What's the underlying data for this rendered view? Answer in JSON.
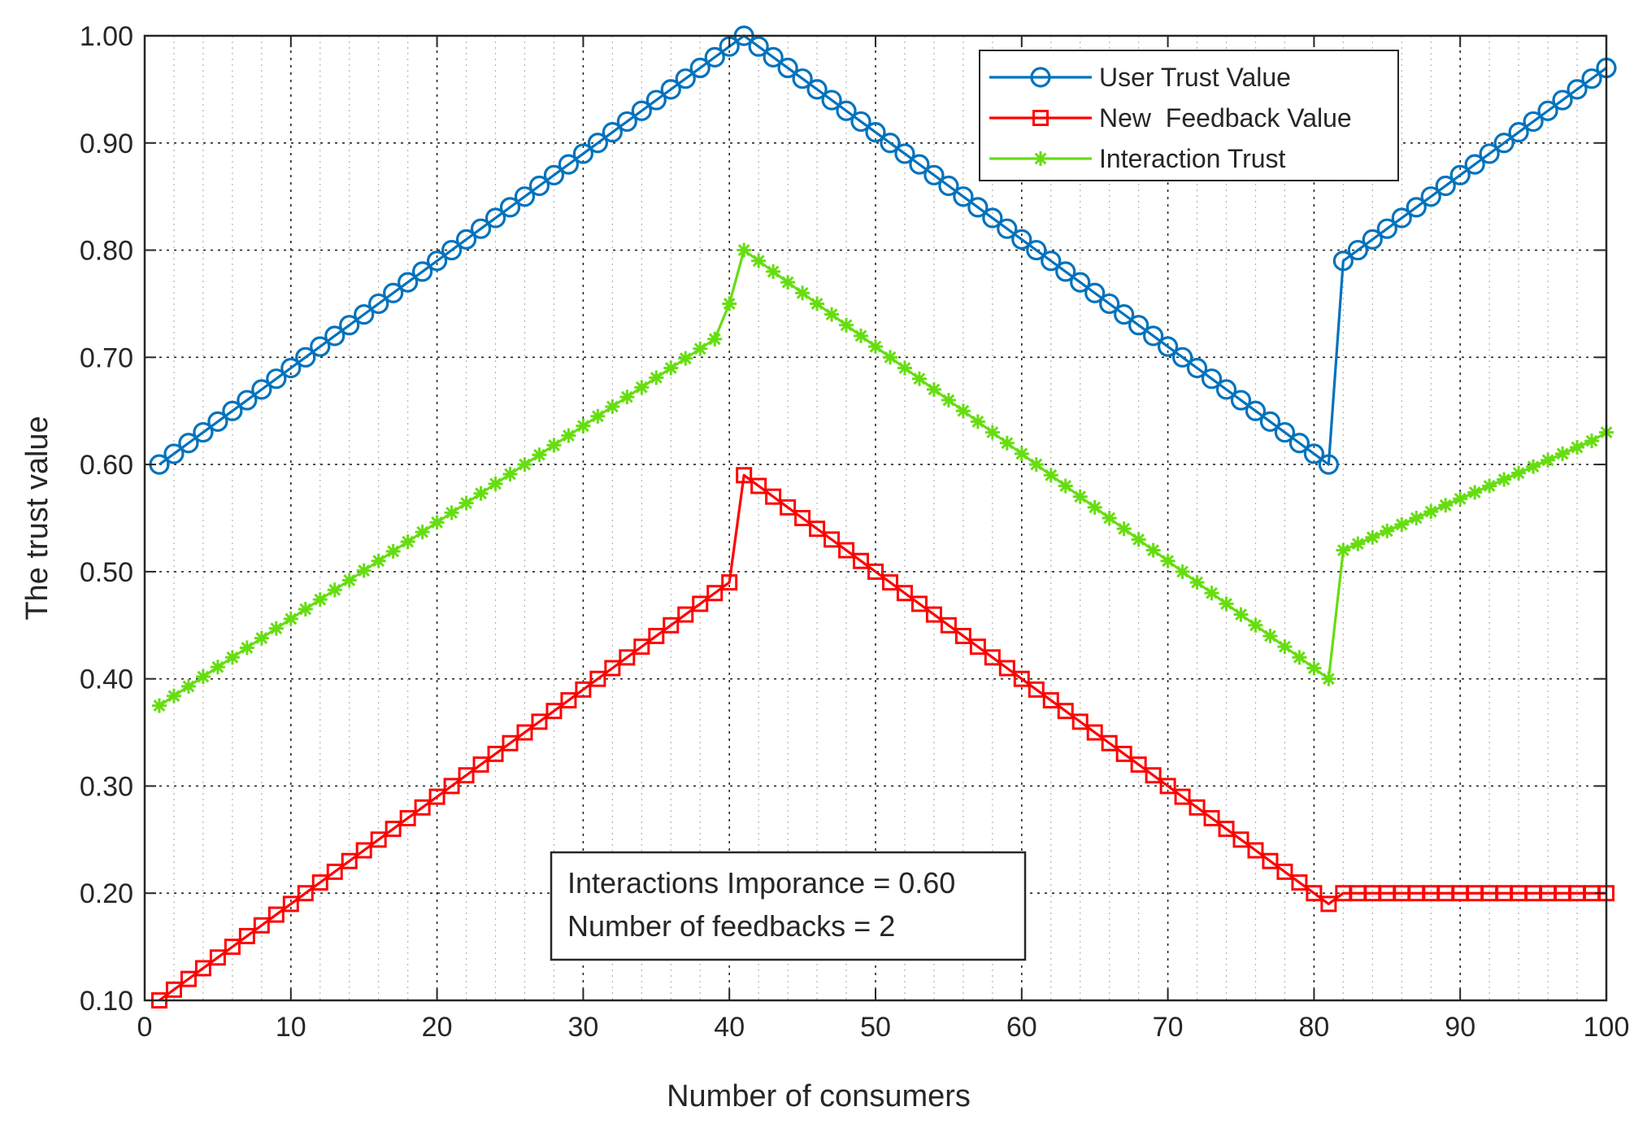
{
  "chart_data": {
    "type": "line",
    "title": "",
    "xlabel": "Number of consumers",
    "ylabel": "The trust value",
    "xlim": [
      0,
      100
    ],
    "ylim": [
      0.1,
      1.0
    ],
    "xticks": [
      0,
      10,
      20,
      30,
      40,
      50,
      60,
      70,
      80,
      90,
      100
    ],
    "yticks": [
      0.1,
      0.2,
      0.3,
      0.4,
      0.5,
      0.6,
      0.7,
      0.8,
      0.9,
      1.0
    ],
    "xtick_labels": [
      "0",
      "10",
      "20",
      "30",
      "40",
      "50",
      "60",
      "70",
      "80",
      "90",
      "100"
    ],
    "ytick_labels": [
      "0.10",
      "0.20",
      "0.30",
      "0.40",
      "0.50",
      "0.60",
      "0.70",
      "0.80",
      "0.90",
      "1.00"
    ],
    "grid": "major dashed, minor dotted",
    "legend_position": "top-right",
    "x": [
      1,
      2,
      3,
      4,
      5,
      6,
      7,
      8,
      9,
      10,
      11,
      12,
      13,
      14,
      15,
      16,
      17,
      18,
      19,
      20,
      21,
      22,
      23,
      24,
      25,
      26,
      27,
      28,
      29,
      30,
      31,
      32,
      33,
      34,
      35,
      36,
      37,
      38,
      39,
      40,
      41,
      42,
      43,
      44,
      45,
      46,
      47,
      48,
      49,
      50,
      51,
      52,
      53,
      54,
      55,
      56,
      57,
      58,
      59,
      60,
      61,
      62,
      63,
      64,
      65,
      66,
      67,
      68,
      69,
      70,
      71,
      72,
      73,
      74,
      75,
      76,
      77,
      78,
      79,
      80,
      81,
      82,
      83,
      84,
      85,
      86,
      87,
      88,
      89,
      90,
      91,
      92,
      93,
      94,
      95,
      96,
      97,
      98,
      99,
      100
    ],
    "series": [
      {
        "name": "User Trust Value",
        "color": "#0072BD",
        "marker": "circle",
        "values": [
          0.6,
          0.61,
          0.62,
          0.63,
          0.64,
          0.65,
          0.66,
          0.67,
          0.68,
          0.69,
          0.7,
          0.71,
          0.72,
          0.73,
          0.74,
          0.75,
          0.76,
          0.77,
          0.78,
          0.79,
          0.8,
          0.81,
          0.82,
          0.83,
          0.84,
          0.85,
          0.86,
          0.87,
          0.88,
          0.89,
          0.9,
          0.91,
          0.92,
          0.93,
          0.94,
          0.95,
          0.96,
          0.97,
          0.98,
          0.99,
          1.0,
          0.99,
          0.98,
          0.97,
          0.96,
          0.95,
          0.94,
          0.93,
          0.92,
          0.91,
          0.9,
          0.89,
          0.88,
          0.87,
          0.86,
          0.85,
          0.84,
          0.83,
          0.82,
          0.81,
          0.8,
          0.79,
          0.78,
          0.77,
          0.76,
          0.75,
          0.74,
          0.73,
          0.72,
          0.71,
          0.7,
          0.69,
          0.68,
          0.67,
          0.66,
          0.65,
          0.64,
          0.63,
          0.62,
          0.61,
          0.6,
          0.79,
          0.8,
          0.81,
          0.82,
          0.83,
          0.84,
          0.85,
          0.86,
          0.87,
          0.88,
          0.89,
          0.9,
          0.91,
          0.92,
          0.93,
          0.94,
          0.95,
          0.96,
          0.97
        ]
      },
      {
        "name": "New  Feedback Value",
        "color": "#FF0000",
        "marker": "square",
        "values": [
          0.1,
          0.11,
          0.12,
          0.13,
          0.14,
          0.15,
          0.16,
          0.17,
          0.18,
          0.19,
          0.2,
          0.21,
          0.22,
          0.23,
          0.24,
          0.25,
          0.26,
          0.27,
          0.28,
          0.29,
          0.3,
          0.31,
          0.32,
          0.33,
          0.34,
          0.35,
          0.36,
          0.37,
          0.38,
          0.39,
          0.4,
          0.41,
          0.42,
          0.43,
          0.44,
          0.45,
          0.46,
          0.47,
          0.48,
          0.49,
          0.59,
          0.58,
          0.57,
          0.56,
          0.55,
          0.54,
          0.53,
          0.52,
          0.51,
          0.5,
          0.49,
          0.48,
          0.47,
          0.46,
          0.45,
          0.44,
          0.43,
          0.42,
          0.41,
          0.4,
          0.39,
          0.38,
          0.37,
          0.36,
          0.35,
          0.34,
          0.33,
          0.32,
          0.31,
          0.3,
          0.29,
          0.28,
          0.27,
          0.26,
          0.25,
          0.24,
          0.23,
          0.22,
          0.21,
          0.2,
          0.19,
          0.2,
          0.2,
          0.2,
          0.2,
          0.2,
          0.2,
          0.2,
          0.2,
          0.2,
          0.2,
          0.2,
          0.2,
          0.2,
          0.2,
          0.2,
          0.2,
          0.2,
          0.2,
          0.2
        ]
      },
      {
        "name": "Interaction Trust",
        "color": "#66DD11",
        "marker": "asterisk",
        "values": [
          0.375,
          0.384,
          0.393,
          0.402,
          0.411,
          0.42,
          0.429,
          0.438,
          0.447,
          0.456,
          0.465,
          0.474,
          0.483,
          0.492,
          0.501,
          0.51,
          0.519,
          0.528,
          0.537,
          0.546,
          0.555,
          0.564,
          0.573,
          0.582,
          0.591,
          0.6,
          0.609,
          0.618,
          0.627,
          0.636,
          0.645,
          0.654,
          0.663,
          0.672,
          0.681,
          0.69,
          0.699,
          0.708,
          0.717,
          0.75,
          0.8,
          0.79,
          0.78,
          0.77,
          0.76,
          0.75,
          0.74,
          0.73,
          0.72,
          0.71,
          0.7,
          0.69,
          0.68,
          0.67,
          0.66,
          0.65,
          0.64,
          0.63,
          0.62,
          0.61,
          0.6,
          0.59,
          0.58,
          0.57,
          0.56,
          0.55,
          0.54,
          0.53,
          0.52,
          0.51,
          0.5,
          0.49,
          0.48,
          0.47,
          0.46,
          0.45,
          0.44,
          0.43,
          0.42,
          0.41,
          0.4,
          0.52,
          0.526,
          0.532,
          0.538,
          0.544,
          0.55,
          0.556,
          0.562,
          0.568,
          0.574,
          0.58,
          0.586,
          0.592,
          0.598,
          0.604,
          0.61,
          0.616,
          0.622,
          0.63
        ]
      }
    ],
    "annotations": [
      "Interactions Imporance = 0.60",
      "Number of feedbacks = 2"
    ]
  }
}
